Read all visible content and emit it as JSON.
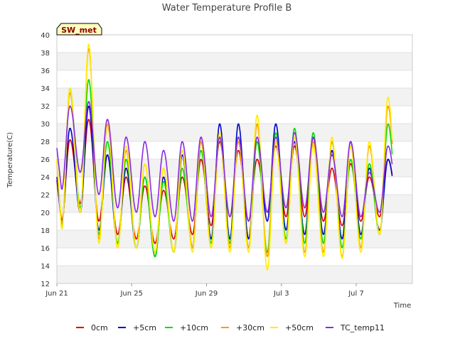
{
  "chart_data": {
    "type": "line",
    "title": "Water Temperature Profile B",
    "xlabel": "Time",
    "ylabel": "Temperature(C)",
    "ylim": [
      12,
      40
    ],
    "yticks": [
      12,
      14,
      16,
      18,
      20,
      22,
      24,
      26,
      28,
      30,
      32,
      34,
      36,
      38,
      40
    ],
    "xlim": [
      "Jun 21",
      "Jul 10"
    ],
    "xticks": [
      "Jun 21",
      "Jun 25",
      "Jun 29",
      "Jul 3",
      "Jul 7"
    ],
    "grid": "horizontal bands",
    "legend_position": "bottom",
    "annotation": "SW_met",
    "series": [
      {
        "name": "0cm",
        "color": "#dd0000",
        "peaks": [
          28.2,
          30.5,
          26.5,
          24.0,
          23.0,
          22.5,
          24.0,
          26.0,
          28.0,
          27.0,
          26.0,
          27.5,
          27.5,
          27.5,
          25.0,
          25.5,
          24.0,
          26.0,
          27.2
        ],
        "troughs": [
          19.0,
          21.0,
          19.0,
          17.5,
          17.0,
          16.5,
          17.0,
          17.5,
          18.5,
          19.5,
          19.0,
          20.0,
          19.5,
          19.5,
          19.0,
          18.5,
          19.0,
          19.5,
          21.0,
          24.5
        ]
      },
      {
        "name": "+5cm",
        "color": "#0000cc",
        "peaks": [
          29.5,
          32.0,
          26.5,
          25.0,
          24.0,
          24.0,
          26.5,
          28.0,
          30.0,
          30.0,
          28.0,
          30.0,
          28.0,
          28.5,
          27.0,
          28.0,
          25.0,
          26.0,
          30.0
        ],
        "troughs": [
          18.5,
          20.0,
          18.0,
          16.5,
          16.0,
          15.0,
          15.5,
          16.0,
          17.0,
          17.0,
          17.0,
          19.0,
          18.0,
          17.5,
          17.5,
          17.0,
          17.5,
          18.0,
          20.5,
          24.0
        ]
      },
      {
        "name": "+10cm",
        "color": "#00dd00",
        "peaks": [
          34.0,
          35.0,
          28.0,
          26.0,
          24.0,
          23.5,
          25.0,
          27.0,
          28.5,
          28.5,
          28.0,
          29.0,
          29.5,
          29.0,
          28.0,
          26.0,
          25.5,
          30.0,
          31.5
        ],
        "troughs": [
          18.0,
          20.5,
          17.5,
          16.5,
          16.0,
          15.0,
          15.5,
          16.0,
          16.5,
          16.5,
          16.0,
          15.5,
          17.0,
          16.5,
          16.5,
          16.0,
          17.0,
          17.5,
          20.0,
          24.0
        ]
      },
      {
        "name": "+30cm",
        "color": "#ff9900",
        "peaks": [
          33.5,
          38.5,
          30.0,
          27.0,
          25.5,
          25.0,
          27.0,
          28.0,
          28.5,
          28.0,
          30.0,
          28.0,
          28.5,
          28.0,
          28.0,
          27.5,
          27.5,
          32.0,
          35.5
        ],
        "troughs": [
          18.0,
          20.0,
          17.0,
          16.0,
          16.0,
          15.5,
          15.5,
          16.0,
          16.0,
          16.0,
          16.0,
          15.0,
          16.5,
          15.5,
          15.5,
          15.0,
          16.0,
          17.5,
          19.5,
          23.5
        ]
      },
      {
        "name": "+50cm",
        "color": "#ffee00",
        "peaks": [
          34.0,
          39.0,
          30.5,
          27.5,
          25.5,
          25.0,
          27.0,
          28.5,
          29.0,
          28.5,
          31.0,
          28.0,
          28.5,
          27.5,
          28.5,
          27.5,
          28.0,
          33.0,
          36.5
        ],
        "troughs": [
          18.0,
          20.0,
          16.5,
          16.0,
          16.0,
          15.5,
          15.5,
          15.5,
          16.0,
          15.5,
          15.5,
          13.5,
          16.5,
          15.0,
          15.0,
          14.8,
          15.5,
          17.5,
          19.0,
          23.5
        ]
      },
      {
        "name": "TC_temp11",
        "color": "#8a2be2",
        "peaks": [
          32.0,
          32.5,
          30.5,
          28.5,
          28.0,
          27.0,
          28.0,
          28.5,
          28.5,
          28.5,
          28.5,
          28.5,
          29.0,
          28.5,
          26.5,
          28.0,
          24.5,
          27.5,
          29.5
        ],
        "troughs": [
          22.5,
          24.5,
          22.0,
          20.5,
          20.0,
          19.5,
          19.0,
          19.0,
          19.5,
          19.5,
          19.0,
          20.0,
          20.5,
          20.5,
          20.0,
          19.5,
          19.5,
          20.0,
          21.5,
          25.0
        ]
      }
    ]
  }
}
